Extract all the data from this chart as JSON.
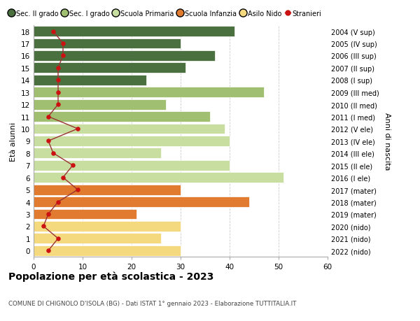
{
  "ages": [
    0,
    1,
    2,
    3,
    4,
    5,
    6,
    7,
    8,
    9,
    10,
    11,
    12,
    13,
    14,
    15,
    16,
    17,
    18
  ],
  "years": [
    "2022 (nido)",
    "2021 (nido)",
    "2020 (nido)",
    "2019 (mater)",
    "2018 (mater)",
    "2017 (mater)",
    "2016 (I ele)",
    "2015 (II ele)",
    "2014 (III ele)",
    "2013 (IV ele)",
    "2012 (V ele)",
    "2011 (I med)",
    "2010 (II med)",
    "2009 (III med)",
    "2008 (I sup)",
    "2007 (II sup)",
    "2006 (III sup)",
    "2005 (IV sup)",
    "2004 (V sup)"
  ],
  "values": [
    30,
    26,
    30,
    21,
    44,
    30,
    51,
    40,
    26,
    40,
    39,
    36,
    27,
    47,
    23,
    31,
    37,
    30,
    41
  ],
  "stranieri": [
    3,
    5,
    2,
    3,
    5,
    9,
    6,
    8,
    4,
    3,
    9,
    3,
    5,
    5,
    5,
    5,
    6,
    6,
    4
  ],
  "bar_colors": [
    "#f5d97e",
    "#f5d97e",
    "#f5d97e",
    "#e07b30",
    "#e07b30",
    "#e07b30",
    "#c8dda0",
    "#c8dda0",
    "#c8dda0",
    "#c8dda0",
    "#c8dda0",
    "#a0bf70",
    "#a0bf70",
    "#a0bf70",
    "#4a7040",
    "#4a7040",
    "#4a7040",
    "#4a7040",
    "#4a7040"
  ],
  "legend_labels": [
    "Sec. II grado",
    "Sec. I grado",
    "Scuola Primaria",
    "Scuola Infanzia",
    "Asilo Nido",
    "Stranieri"
  ],
  "legend_colors": [
    "#4a7040",
    "#a0bf70",
    "#c8dda0",
    "#e07b30",
    "#f5d97e",
    "#cc1111"
  ],
  "ylabel_left": "Età alunni",
  "ylabel_right": "Anni di nascita",
  "title": "Popolazione per età scolastica - 2023",
  "subtitle": "COMUNE DI CHIGNOLO D'ISOLA (BG) - Dati ISTAT 1° gennaio 2023 - Elaborazione TUTTITALIA.IT",
  "xlim": [
    0,
    60
  ],
  "background_color": "#ffffff",
  "grid_color": "#cccccc",
  "stranieri_color": "#cc1111",
  "stranieri_line_color": "#993333"
}
